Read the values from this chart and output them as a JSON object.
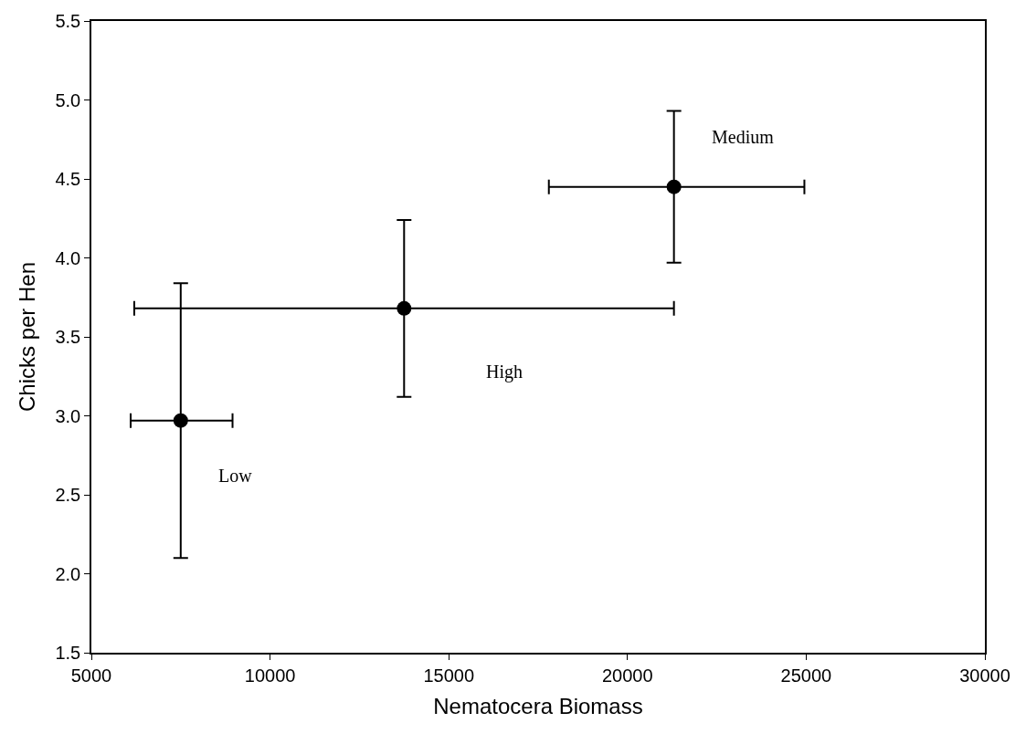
{
  "chart_data": {
    "type": "scatter",
    "xlabel": "Nematocera Biomass",
    "ylabel": "Chicks per Hen",
    "x": [
      7500,
      13750,
      21300
    ],
    "values": [
      2.97,
      3.68,
      4.45
    ],
    "errors": [
      [
        2.1,
        3.84
      ],
      [
        3.12,
        4.24
      ],
      [
        3.97,
        4.93
      ]
    ],
    "xerrors": [
      [
        6100,
        8950
      ],
      [
        6200,
        21300
      ],
      [
        17800,
        24950
      ]
    ],
    "color": "#000000",
    "marker": "circle",
    "grid": false,
    "legend": false,
    "xlim": [
      5000,
      30000
    ],
    "xticks": [
      5000,
      10000,
      15000,
      20000,
      25000,
      30000
    ],
    "ylim": [
      1.5,
      5.5
    ],
    "yticks": [
      {
        "value": 1.5,
        "label": "1.5"
      },
      {
        "value": 2,
        "label": "2.0"
      },
      {
        "value": 2.5,
        "label": "2.5"
      },
      {
        "value": 3,
        "label": "3.0"
      },
      {
        "value": 3.5,
        "label": "3.5"
      },
      {
        "value": 4,
        "label": "4.0"
      },
      {
        "value": 4.5,
        "label": "4.5"
      },
      {
        "value": 5,
        "label": "5.0"
      },
      {
        "value": 5.5,
        "label": "5.5"
      }
    ],
    "annotations": [
      "Low",
      "High",
      "Medium"
    ]
  }
}
